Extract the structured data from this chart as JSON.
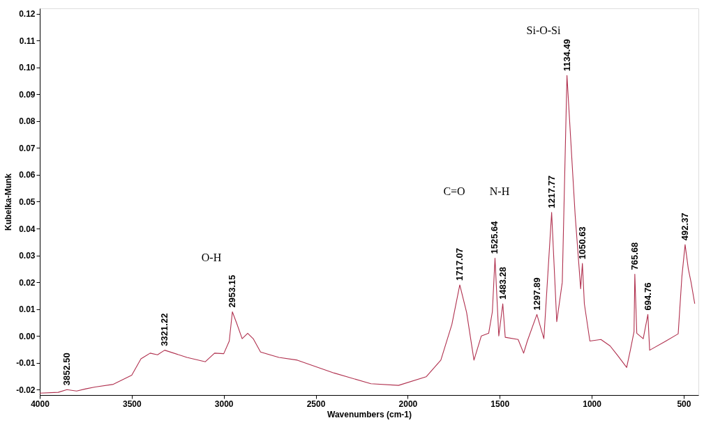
{
  "chart_data": {
    "type": "line",
    "xlabel": "Wavenumbers (cm-1)",
    "ylabel": "Kubelka-Munk",
    "x": [
      4000,
      3900,
      3852.5,
      3800,
      3750,
      3700,
      3600,
      3500,
      3450,
      3400,
      3360,
      3321.22,
      3200,
      3100,
      3050,
      3000,
      2970,
      2953.15,
      2930,
      2900,
      2870,
      2840,
      2800,
      2700,
      2600,
      2400,
      2200,
      2050,
      1900,
      1820,
      1760,
      1717.07,
      1680,
      1640,
      1600,
      1560,
      1540,
      1525.64,
      1505,
      1483.28,
      1470,
      1400,
      1370,
      1350,
      1297.89,
      1260,
      1217.77,
      1190,
      1160,
      1134.49,
      1090,
      1060,
      1050.63,
      1040,
      1010,
      950,
      900,
      860,
      840,
      810,
      790,
      770,
      765.68,
      755,
      720,
      694.76,
      685,
      600,
      530,
      510,
      492.37,
      475,
      460,
      440
    ],
    "series": [
      {
        "color": "#b0304e",
        "values": [
          -0.0213,
          -0.021,
          -0.02,
          -0.0205,
          -0.0197,
          -0.019,
          -0.018,
          -0.0146,
          -0.0085,
          -0.0064,
          -0.007,
          -0.0053,
          -0.008,
          -0.0096,
          -0.0064,
          -0.0066,
          -0.0019,
          0.009,
          0.0048,
          -0.001,
          0.001,
          -0.001,
          -0.006,
          -0.008,
          -0.009,
          -0.0138,
          -0.0178,
          -0.0184,
          -0.0152,
          -0.009,
          0.0043,
          0.019,
          0.0088,
          -0.009,
          0.0,
          0.001,
          0.009,
          0.029,
          0.0,
          0.012,
          -0.0005,
          -0.0013,
          -0.0064,
          -0.0019,
          0.008,
          -0.001,
          0.046,
          0.0053,
          0.02,
          0.097,
          0.045,
          0.0176,
          0.027,
          0.012,
          -0.0019,
          -0.0013,
          -0.0037,
          -0.0072,
          -0.009,
          -0.0117,
          -0.0053,
          0.0016,
          0.023,
          0.001,
          -0.001,
          0.008,
          -0.0053,
          -0.002,
          0.0008,
          0.022,
          0.034,
          0.025,
          0.02,
          0.012
        ]
      }
    ],
    "xlim": [
      4000,
      420
    ],
    "ylim": [
      -0.022,
      0.122
    ],
    "xticks": [
      4000,
      3500,
      3000,
      2500,
      2000,
      1500,
      1000,
      500
    ],
    "yticks": [
      {
        "value": -0.02,
        "label": "-0.02"
      },
      {
        "value": -0.01,
        "label": "-0.01"
      },
      {
        "value": 0,
        "label": "0.00"
      },
      {
        "value": 0.01,
        "label": "0.01"
      },
      {
        "value": 0.02,
        "label": "0.02"
      },
      {
        "value": 0.03,
        "label": "0.03"
      },
      {
        "value": 0.04,
        "label": "0.04"
      },
      {
        "value": 0.05,
        "label": "0.05"
      },
      {
        "value": 0.06,
        "label": "0.06"
      },
      {
        "value": 0.07,
        "label": "0.07"
      },
      {
        "value": 0.08,
        "label": "0.08"
      },
      {
        "value": 0.09,
        "label": "0.09"
      },
      {
        "value": 0.1,
        "label": "0.10"
      },
      {
        "value": 0.11,
        "label": "0.11"
      },
      {
        "value": 0.12,
        "label": "0.12"
      }
    ],
    "grid": false,
    "marker": "none",
    "line_style": "solid",
    "annotations": [
      "O-H",
      "C=O",
      "N-H",
      "Si-O-Si",
      {
        "text": "3852.50",
        "x": 3852.5,
        "y": -0.02
      },
      {
        "text": "3321.22",
        "x": 3321.22,
        "y": -0.0053
      },
      {
        "text": "2953.15",
        "x": 2953.15,
        "y": 0.009
      },
      {
        "text": "1717.07",
        "x": 1717.07,
        "y": 0.019
      },
      {
        "text": "1525.64",
        "x": 1525.64,
        "y": 0.029
      },
      {
        "text": "1483.28",
        "x": 1483.28,
        "y": 0.012
      },
      {
        "text": "1297.89",
        "x": 1297.89,
        "y": 0.008
      },
      {
        "text": "1217.77",
        "x": 1217.77,
        "y": 0.046
      },
      {
        "text": "1134.49",
        "x": 1134.49,
        "y": 0.097
      },
      {
        "text": "1050.63",
        "x": 1050.63,
        "y": 0.027
      },
      {
        "text": "765.68",
        "x": 765.68,
        "y": 0.023
      },
      {
        "text": "694.76",
        "x": 694.76,
        "y": 0.008
      },
      {
        "text": "492.37",
        "x": 492.37,
        "y": 0.034
      }
    ]
  }
}
